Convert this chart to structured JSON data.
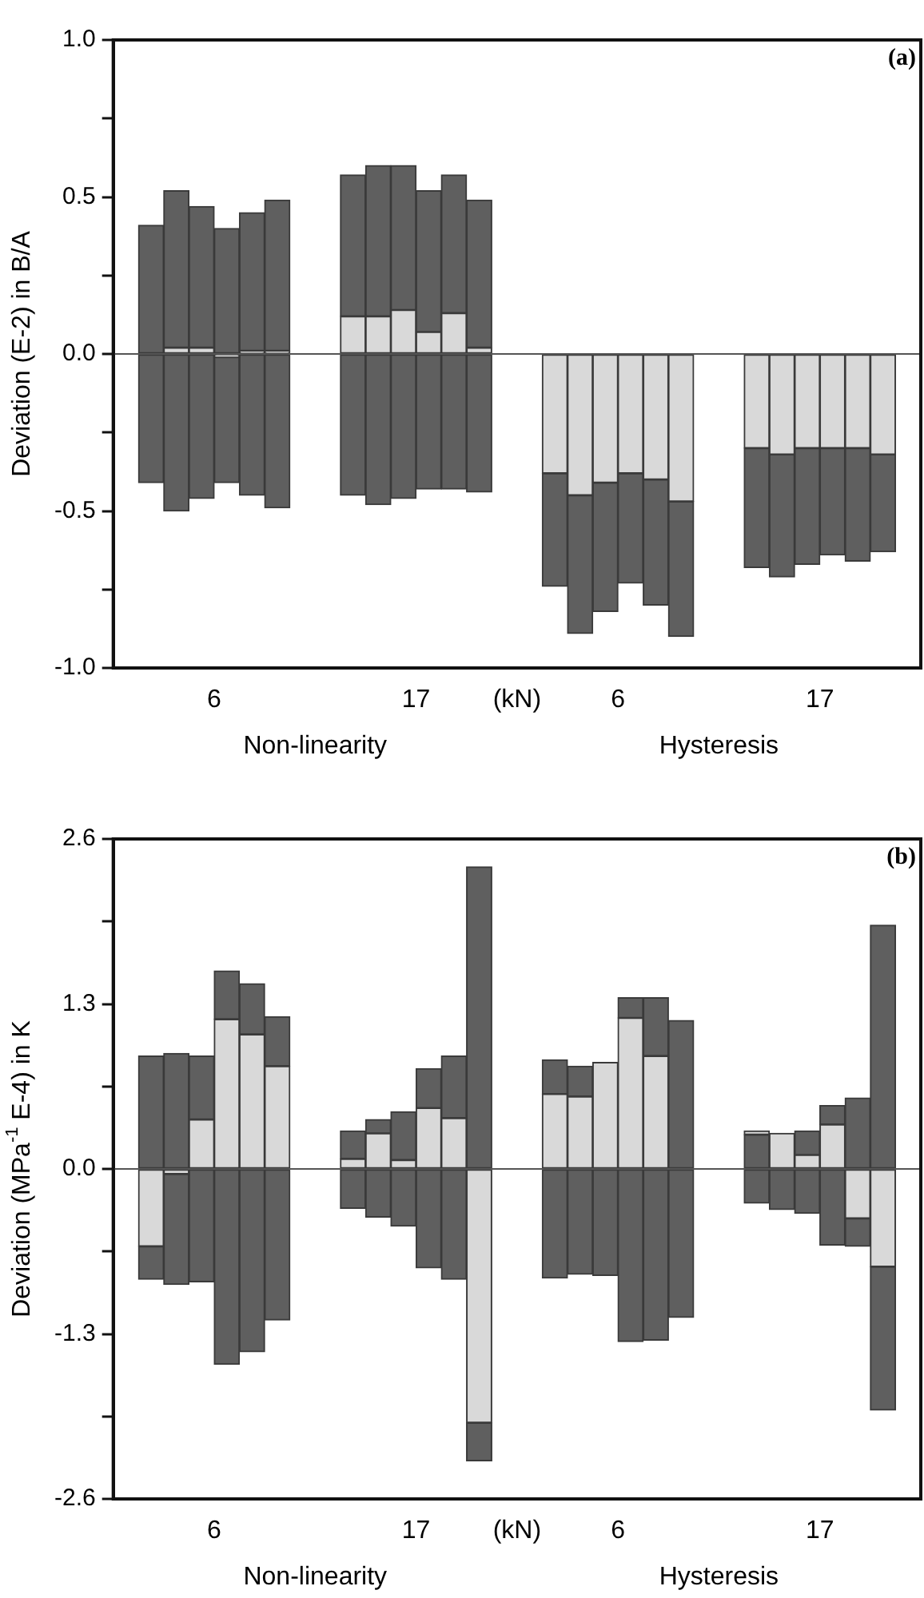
{
  "chart_data": [
    {
      "type": "bar",
      "ylabel": "Deviation (E-2) in B/A",
      "tick_labels": "y",
      "categories": [
        null,
        null,
        null,
        null,
        null,
        null,
        null,
        null,
        null,
        null,
        null,
        null,
        null,
        null,
        null,
        null,
        null,
        null,
        null,
        null,
        null,
        null,
        null,
        null,
        null,
        null,
        null,
        null,
        null,
        null,
        null,
        null
      ],
      "series": [
        {
          "color": "#5f5f5f",
          "base": [
            null,
            0,
            0.02,
            0.02,
            0,
            0.01,
            0.01,
            null,
            null,
            0.12,
            0.12,
            0.14,
            0.07,
            0.13,
            0.02,
            null,
            null,
            null,
            null,
            null,
            null,
            null,
            null,
            null,
            null,
            null,
            null,
            null,
            null,
            null,
            null,
            null
          ],
          "values": [
            null,
            0.41,
            0.5,
            0.45,
            0.4,
            0.44,
            0.48,
            null,
            null,
            0.45,
            0.48,
            0.46,
            0.45,
            0.44,
            0.47,
            null,
            null,
            null,
            null,
            null,
            null,
            null,
            null,
            null,
            null,
            null,
            null,
            null,
            null,
            null,
            null,
            null
          ]
        },
        {
          "color": "#d9d9d9",
          "base": [
            null,
            null,
            0,
            0,
            0,
            0,
            0,
            null,
            null,
            0,
            0,
            0,
            0,
            0,
            0,
            null,
            null,
            0,
            0,
            0,
            0,
            0,
            0,
            null,
            null,
            0,
            0,
            0,
            0,
            0,
            0,
            null
          ],
          "values": [
            null,
            null,
            0.02,
            0.02,
            -0.01,
            0.01,
            0.01,
            null,
            null,
            0.12,
            0.12,
            0.14,
            0.07,
            0.13,
            0.02,
            null,
            null,
            -0.38,
            -0.45,
            -0.41,
            -0.38,
            -0.4,
            -0.47,
            null,
            null,
            -0.3,
            -0.32,
            -0.3,
            -0.3,
            -0.3,
            -0.32,
            null
          ]
        },
        {
          "color": "#5f5f5f",
          "base": [
            null,
            -0.41,
            -0.5,
            -0.46,
            -0.41,
            -0.45,
            -0.49,
            null,
            null,
            -0.45,
            -0.48,
            -0.46,
            -0.43,
            -0.43,
            -0.44,
            null,
            null,
            -0.74,
            -0.89,
            -0.82,
            -0.73,
            -0.8,
            -0.9,
            null,
            null,
            -0.68,
            -0.71,
            -0.67,
            -0.64,
            -0.66,
            -0.63,
            null
          ],
          "values": [
            null,
            0.41,
            0.5,
            0.46,
            0.4,
            0.45,
            0.49,
            null,
            null,
            0.45,
            0.48,
            0.46,
            0.43,
            0.43,
            0.44,
            null,
            null,
            0.36,
            0.44,
            0.41,
            0.35,
            0.4,
            0.43,
            null,
            null,
            0.38,
            0.39,
            0.37,
            0.34,
            0.36,
            0.31,
            null
          ]
        }
      ],
      "ylim": [
        -1,
        1
      ],
      "yticks": [
        {
          "value": -1,
          "label": "-1.0"
        },
        {
          "value": -0.75,
          "label": null
        },
        {
          "value": -0.5,
          "label": "-0.5"
        },
        {
          "value": -0.25,
          "label": null
        },
        {
          "value": 0,
          "label": "0.0"
        },
        {
          "value": 0.25,
          "label": null
        },
        {
          "value": 0.5,
          "label": "0.5"
        },
        {
          "value": 0.75,
          "label": null
        },
        {
          "value": 1,
          "label": "1.0"
        }
      ],
      "ref_lines": [
        {
          "axis": "y",
          "value": 0,
          "color": "#555555"
        }
      ],
      "annotations": [
        "6",
        "17",
        "(kN)",
        "6",
        "17",
        "Non-linearity",
        "Hysteresis",
        "(a)"
      ]
    },
    {
      "type": "bar",
      "ylabel": "Deviation (MPa$^{-1}$ E-4) in K",
      "tick_labels": "y",
      "categories": [
        null,
        null,
        null,
        null,
        null,
        null,
        null,
        null,
        null,
        null,
        null,
        null,
        null,
        null,
        null,
        null,
        null,
        null,
        null,
        null,
        null,
        null,
        null,
        null,
        null,
        null,
        null,
        null,
        null,
        null,
        null,
        null
      ],
      "series": [
        {
          "color": "#5f5f5f",
          "base": [
            null,
            0,
            0,
            0.39,
            1.18,
            1.06,
            0.81,
            null,
            null,
            0.08,
            0.28,
            0.07,
            0.48,
            0.4,
            0,
            null,
            null,
            0.59,
            0.57,
            null,
            1.19,
            0.89,
            0,
            null,
            null,
            0,
            null,
            0.11,
            0.35,
            0,
            0,
            null
          ],
          "values": [
            null,
            0.89,
            0.91,
            0.5,
            0.38,
            0.4,
            0.39,
            null,
            null,
            0.22,
            0.11,
            0.38,
            0.31,
            0.49,
            2.38,
            null,
            null,
            0.27,
            0.24,
            null,
            0.16,
            0.46,
            1.17,
            null,
            null,
            0.27,
            null,
            0.19,
            0.15,
            0.56,
            1.92,
            null
          ]
        },
        {
          "color": "#d9d9d9",
          "base": [
            null,
            0,
            0,
            0,
            0,
            0,
            0,
            null,
            null,
            0,
            0,
            0,
            0,
            0,
            0,
            null,
            null,
            0,
            0,
            0,
            0,
            0,
            null,
            null,
            null,
            0.27,
            0,
            0,
            0,
            0,
            0,
            null
          ],
          "values": [
            null,
            -0.61,
            -0.04,
            0.39,
            1.18,
            1.06,
            0.81,
            null,
            null,
            0.08,
            0.28,
            0.07,
            0.48,
            0.4,
            -2,
            null,
            null,
            0.59,
            0.57,
            0.84,
            1.19,
            0.89,
            null,
            null,
            null,
            0.03,
            0.28,
            0.11,
            0.35,
            -0.39,
            -0.77,
            null
          ]
        },
        {
          "color": "#5f5f5f",
          "base": [
            null,
            -0.87,
            -0.91,
            -0.89,
            -1.54,
            -1.44,
            -1.19,
            null,
            null,
            -0.31,
            -0.38,
            -0.45,
            -0.78,
            -0.87,
            -2.3,
            null,
            null,
            -0.86,
            -0.83,
            -0.84,
            -1.36,
            -1.35,
            -1.17,
            null,
            null,
            -0.27,
            -0.32,
            -0.35,
            -0.6,
            -0.61,
            -1.9,
            null
          ],
          "values": [
            null,
            0.26,
            0.87,
            0.89,
            1.54,
            1.44,
            1.19,
            null,
            null,
            0.31,
            0.38,
            0.45,
            0.78,
            0.87,
            0.3,
            null,
            null,
            0.86,
            0.83,
            0.84,
            1.36,
            1.35,
            1.17,
            null,
            null,
            0.27,
            0.32,
            0.35,
            0.6,
            0.22,
            1.13,
            null
          ]
        }
      ],
      "ylim": [
        -2.6,
        2.6
      ],
      "yticks": [
        {
          "value": -2.6,
          "label": "-2.6"
        },
        {
          "value": -1.95,
          "label": null
        },
        {
          "value": -1.3,
          "label": "-1.3"
        },
        {
          "value": -0.65,
          "label": null
        },
        {
          "value": 0,
          "label": "0.0"
        },
        {
          "value": 0.65,
          "label": null
        },
        {
          "value": 1.3,
          "label": "1.3"
        },
        {
          "value": 1.95,
          "label": null
        },
        {
          "value": 2.6,
          "label": "2.6"
        }
      ],
      "ref_lines": [
        {
          "axis": "y",
          "value": 0,
          "color": "#555555"
        }
      ],
      "annotations": [
        "6",
        "17",
        "(kN)",
        "6",
        "17",
        "Non-linearity",
        "Hysteresis",
        "(b)"
      ]
    }
  ]
}
